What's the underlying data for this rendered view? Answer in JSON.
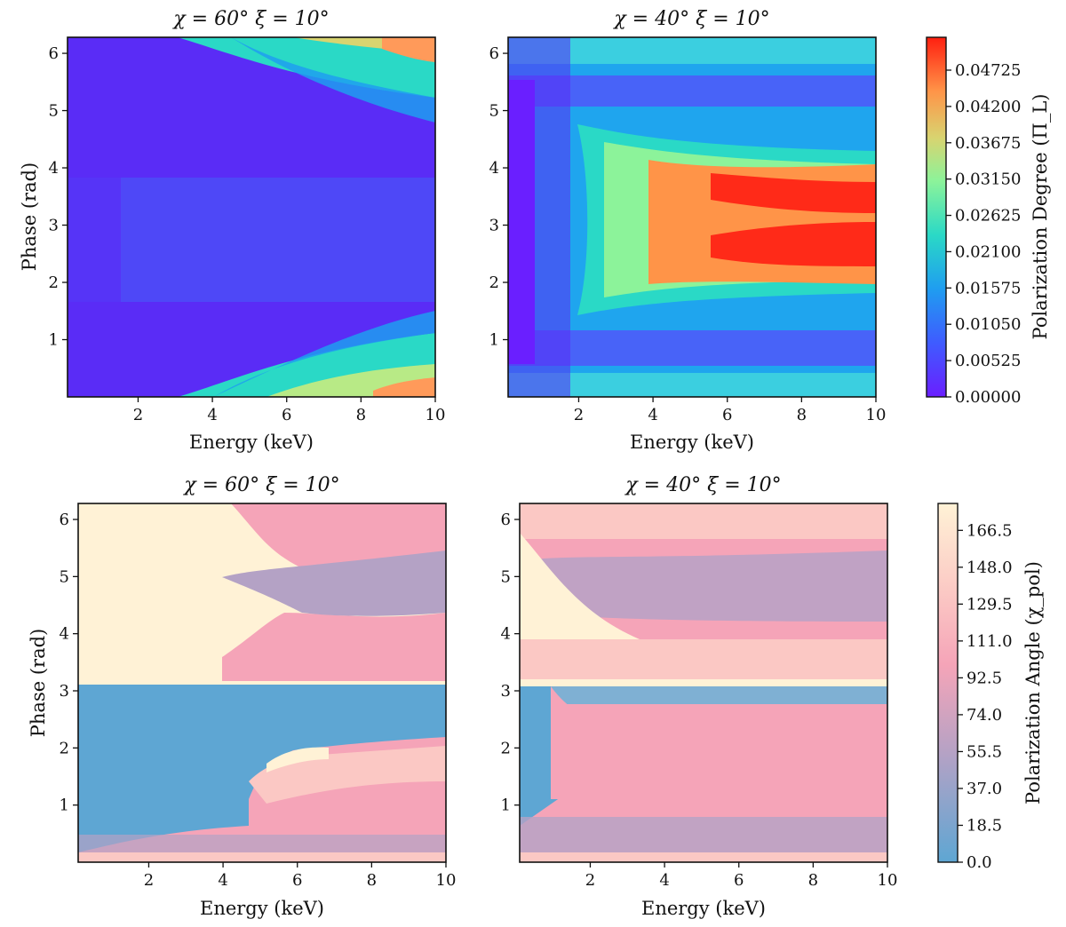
{
  "chart_data": [
    {
      "type": "heatmap",
      "title": "χ = 60° ξ = 10°",
      "xlabel": "Energy (keV)",
      "ylabel": "Phase (rad)",
      "xlim": [
        0.1,
        10
      ],
      "ylim": [
        0,
        6.28
      ],
      "xticks": [
        "2",
        "4",
        "6",
        "8",
        "10"
      ],
      "yticks": [
        "1",
        "2",
        "3",
        "4",
        "5",
        "6"
      ],
      "colorscale": "rainbow",
      "zlim": [
        0,
        0.052
      ],
      "description_values": [
        {
          "phase": 0.1,
          "energy": 10,
          "value": 0.037
        },
        {
          "phase": 6.2,
          "energy": 10,
          "value": 0.035
        },
        {
          "phase": 3.14,
          "energy": 6,
          "value": 0.009
        },
        {
          "phase": 4.5,
          "energy": 5,
          "value": 0.002
        }
      ]
    },
    {
      "type": "heatmap",
      "title": "χ = 40° ξ = 10°",
      "xlabel": "Energy (keV)",
      "ylabel": "",
      "xlim": [
        0.1,
        10
      ],
      "ylim": [
        0,
        6.28
      ],
      "xticks": [
        "2",
        "4",
        "6",
        "8",
        "10"
      ],
      "yticks": [
        "1",
        "2",
        "3",
        "4",
        "5",
        "6"
      ],
      "colorscale": "rainbow",
      "zlim": [
        0,
        0.052
      ],
      "colorbar": {
        "label": "Polarization Degree (Π_L)",
        "ticks": [
          "0.00000",
          "0.00525",
          "0.01050",
          "0.01575",
          "0.02100",
          "0.02625",
          "0.03150",
          "0.03675",
          "0.04200",
          "0.04725"
        ]
      },
      "description_values": [
        {
          "phase": 2.7,
          "energy": 10,
          "value": 0.05
        },
        {
          "phase": 3.6,
          "energy": 10,
          "value": 0.049
        },
        {
          "phase": 0.6,
          "energy": 8,
          "value": 0.004
        },
        {
          "phase": 5.5,
          "energy": 8,
          "value": 0.005
        }
      ]
    },
    {
      "type": "heatmap",
      "title": "χ = 60° ξ = 10°",
      "xlabel": "Energy (keV)",
      "ylabel": "Phase (rad)",
      "xlim": [
        0.1,
        10
      ],
      "ylim": [
        0,
        6.28
      ],
      "xticks": [
        "2",
        "4",
        "6",
        "8",
        "10"
      ],
      "yticks": [
        "1",
        "2",
        "3",
        "4",
        "5",
        "6"
      ],
      "colorscale": "blue-pink-cream",
      "zlim": [
        0,
        180
      ],
      "description_values": [
        {
          "phase": 4.5,
          "energy": 2,
          "value": 175
        },
        {
          "phase": 2.0,
          "energy": 2,
          "value": 5
        },
        {
          "phase": 1.5,
          "energy": 8,
          "value": 120
        },
        {
          "phase": 4.7,
          "energy": 8,
          "value": 60
        }
      ]
    },
    {
      "type": "heatmap",
      "title": "χ = 40° ξ = 10°",
      "xlabel": "Energy (keV)",
      "ylabel": "",
      "xlim": [
        0.1,
        10
      ],
      "ylim": [
        0,
        6.28
      ],
      "xticks": [
        "2",
        "4",
        "6",
        "8",
        "10"
      ],
      "yticks": [
        "1",
        "2",
        "3",
        "4",
        "5",
        "6"
      ],
      "colorscale": "blue-pink-cream",
      "zlim": [
        0,
        180
      ],
      "colorbar": {
        "label": "Polarization Angle (χ_pol)",
        "ticks": [
          "0.0",
          "18.5",
          "37.0",
          "55.5",
          "74.0",
          "92.5",
          "111.0",
          "129.5",
          "148.0",
          "166.5"
        ]
      },
      "description_values": [
        {
          "phase": 3.5,
          "energy": 5,
          "value": 172
        },
        {
          "phase": 2.8,
          "energy": 5,
          "value": 10
        },
        {
          "phase": 4.8,
          "energy": 6,
          "value": 70
        },
        {
          "phase": 1.5,
          "energy": 6,
          "value": 100
        }
      ]
    }
  ]
}
